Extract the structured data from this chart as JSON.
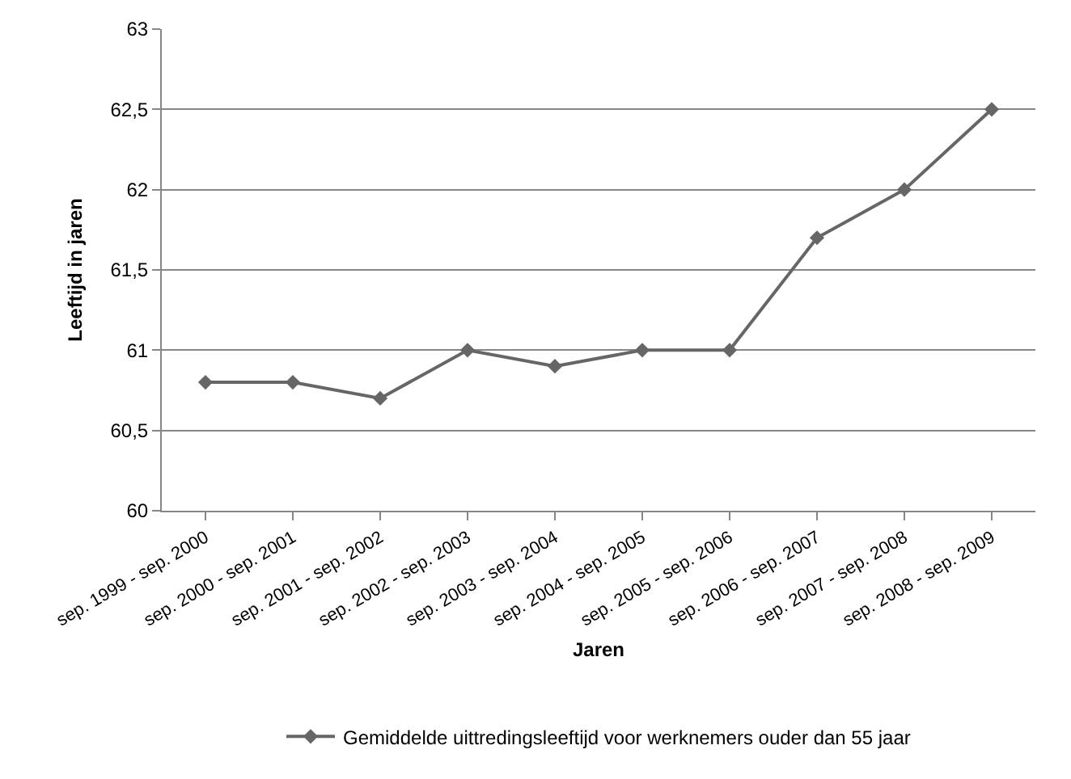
{
  "chart_data": {
    "type": "line",
    "xlabel": "Jaren",
    "ylabel": "Leeftijd in jaren",
    "categories": [
      "sep. 1999 - sep. 2000",
      "sep. 2000 - sep. 2001",
      "sep. 2001 - sep. 2002",
      "sep. 2002 - sep. 2003",
      "sep. 2003 - sep. 2004",
      "sep. 2004 - sep. 2005",
      "sep. 2005 - sep. 2006",
      "sep. 2006 - sep. 2007",
      "sep. 2007 - sep. 2008",
      "sep. 2008 - sep. 2009"
    ],
    "series": [
      {
        "name": "Gemiddelde uittredingsleeftijd voor werknemers ouder dan 55 jaar",
        "color": "#666666",
        "values": [
          60.8,
          60.8,
          60.7,
          61.0,
          60.9,
          61.0,
          61.0,
          61.7,
          62.0,
          62.5
        ]
      }
    ],
    "ylim": [
      60,
      63
    ],
    "yticks": [
      60,
      {
        "value": 60.5,
        "label": "60,5"
      },
      61,
      {
        "value": 61.5,
        "label": "61,5"
      },
      62,
      {
        "value": 62.5,
        "label": "62,5"
      },
      63
    ],
    "grid": "y",
    "legend": "bottom",
    "marker": "diamond",
    "line_style": "solid"
  }
}
